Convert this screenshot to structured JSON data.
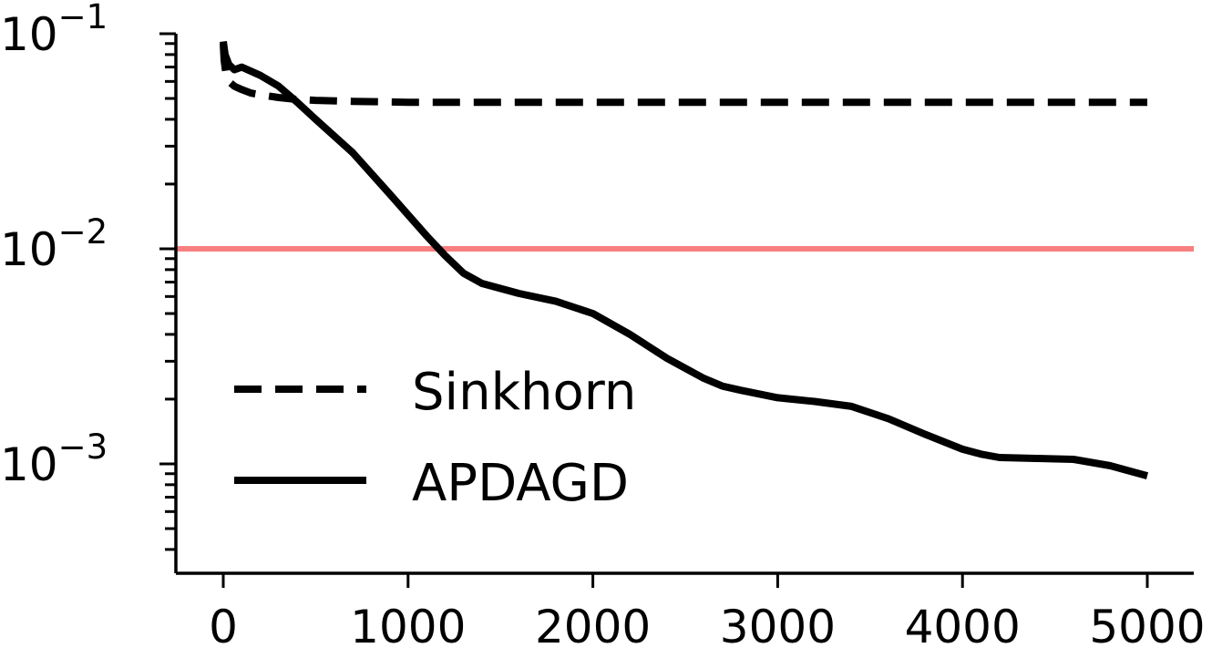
{
  "chart_data": {
    "type": "line",
    "title": "",
    "xlabel": "",
    "ylabel": "",
    "xlim": [
      -250,
      5250
    ],
    "ylim": [
      0.00031,
      0.1
    ],
    "yscale": "log",
    "grid": false,
    "legend_position": "bottom-left",
    "x_ticks": [
      "0",
      "1000",
      "2000",
      "3000",
      "4000",
      "5000"
    ],
    "x_tick_values": [
      0,
      1000,
      2000,
      3000,
      4000,
      5000
    ],
    "y_ticks": [
      {
        "base": "10",
        "exp": "−1",
        "value": 0.1
      },
      {
        "base": "10",
        "exp": "−2",
        "value": 0.01
      },
      {
        "base": "10",
        "exp": "−3",
        "value": 0.001
      }
    ],
    "reference_line": {
      "y": 0.01,
      "color": "#f87f7f"
    },
    "series": [
      {
        "name": "Sinkhorn",
        "style": "dashed",
        "color": "#000000",
        "x": [
          0,
          5,
          15,
          30,
          60,
          100,
          150,
          200,
          300,
          400,
          500,
          700,
          1000,
          1500,
          2000,
          3000,
          4000,
          5000
        ],
        "y": [
          0.09,
          0.075,
          0.065,
          0.06,
          0.057,
          0.055,
          0.053,
          0.052,
          0.0505,
          0.0495,
          0.049,
          0.0485,
          0.048,
          0.048,
          0.048,
          0.048,
          0.048,
          0.048
        ]
      },
      {
        "name": "APDAGD",
        "style": "solid",
        "color": "#000000",
        "x": [
          0,
          10,
          30,
          60,
          100,
          200,
          300,
          400,
          500,
          700,
          900,
          1100,
          1200,
          1300,
          1400,
          1600,
          1800,
          2000,
          2200,
          2400,
          2600,
          2700,
          2800,
          3000,
          3200,
          3400,
          3600,
          3800,
          4000,
          4100,
          4200,
          4400,
          4600,
          4800,
          5000
        ],
        "y": [
          0.092,
          0.08,
          0.072,
          0.068,
          0.07,
          0.064,
          0.057,
          0.048,
          0.04,
          0.028,
          0.018,
          0.0115,
          0.0093,
          0.0077,
          0.0069,
          0.0062,
          0.0057,
          0.005,
          0.004,
          0.0031,
          0.0025,
          0.0023,
          0.0022,
          0.00203,
          0.00195,
          0.00185,
          0.00162,
          0.00137,
          0.00117,
          0.00111,
          0.00107,
          0.00106,
          0.00105,
          0.00098,
          0.00088
        ]
      }
    ]
  }
}
